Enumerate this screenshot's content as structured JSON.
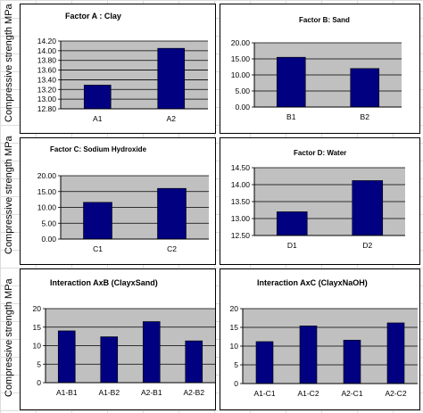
{
  "y_axis_label": "Compressive strength MPa",
  "colors": {
    "bar": "#000080",
    "plot_area": "#c0c0c0",
    "grid": "#000000"
  },
  "chart_data": [
    {
      "type": "bar",
      "title": "Factor A : Clay",
      "categories": [
        "A1",
        "A2"
      ],
      "values": [
        13.29,
        14.05
      ],
      "ylim": [
        12.8,
        14.2
      ],
      "yticks": [
        "14.20",
        "14.00",
        "13.80",
        "13.60",
        "13.40",
        "13.20",
        "13.00",
        "12.80"
      ],
      "grid": true
    },
    {
      "type": "bar",
      "title": "Factor B: Sand",
      "categories": [
        "B1",
        "B2"
      ],
      "values": [
        15.5,
        12.0
      ],
      "ylim": [
        0,
        20
      ],
      "yticks": [
        "20.00",
        "15.00",
        "10.00",
        "5.00",
        "0.00"
      ],
      "grid": true
    },
    {
      "type": "bar",
      "title": "Factor C: Sodium Hydroxide",
      "categories": [
        "C1",
        "C2"
      ],
      "values": [
        11.6,
        16.0
      ],
      "ylim": [
        0,
        20
      ],
      "yticks": [
        "20.00",
        "15.00",
        "10.00",
        "5.00",
        "0.00"
      ],
      "grid": true
    },
    {
      "type": "bar",
      "title": "Factor D: Water",
      "categories": [
        "D1",
        "D2"
      ],
      "values": [
        13.2,
        14.12
      ],
      "ylim": [
        12.5,
        14.5
      ],
      "yticks": [
        "14.50",
        "14.00",
        "13.50",
        "13.00",
        "12.50"
      ],
      "grid": true
    },
    {
      "type": "bar",
      "title": "Interaction AxB (ClayxSand)",
      "categories": [
        "A1-B1",
        "A1-B2",
        "A2-B1",
        "A2-B2"
      ],
      "values": [
        14.0,
        12.4,
        16.5,
        11.3
      ],
      "ylim": [
        0,
        20
      ],
      "yticks": [
        "20",
        "15",
        "10",
        "5",
        "0"
      ],
      "grid": true
    },
    {
      "type": "bar",
      "title": "Interaction AxC (ClayxNaOH)",
      "categories": [
        "A1-C1",
        "A1-C2",
        "A2-C1",
        "A2-C2"
      ],
      "values": [
        11.2,
        15.4,
        11.6,
        16.2
      ],
      "ylim": [
        0,
        20
      ],
      "yticks": [
        "20",
        "15",
        "10",
        "5",
        "0"
      ],
      "grid": true
    }
  ]
}
